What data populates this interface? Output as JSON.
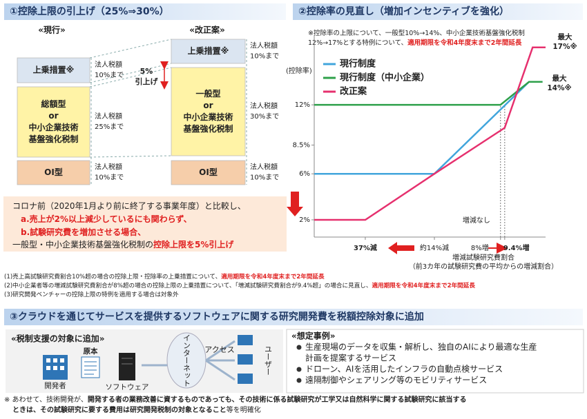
{
  "section1": {
    "title": "①控除上限の引上げ（25%⇒30%）",
    "current_label": "«現行»",
    "proposal_label": "«改正案»",
    "current": [
      {
        "label": [
          "上乗措置※"
        ],
        "limit": [
          "法人税額",
          "10%まで"
        ]
      },
      {
        "label": [
          "総額型",
          "or",
          "中小企業技術",
          "基盤強化税制"
        ],
        "limit": [
          "法人税額",
          "25%まで"
        ]
      },
      {
        "label": [
          "OI型"
        ],
        "limit": [
          "法人税額",
          "10%まで"
        ]
      }
    ],
    "proposal": [
      {
        "label": [
          "上乗措置※"
        ],
        "limit": [
          "法人税額",
          "10%まで"
        ]
      },
      {
        "label": [
          {
            "text": "一般型",
            "color": "#e02020"
          },
          "or",
          "中小企業技術",
          "基盤強化税制"
        ],
        "limit": [
          "法人税額",
          "30%まで"
        ]
      },
      {
        "label": [
          "OI型"
        ],
        "limit": [
          "法人税額",
          "10%まで"
        ]
      }
    ],
    "increase": [
      "5%",
      "引上げ"
    ],
    "comparison": [
      [
        "コロナ前（2020年1月より前に終了する事業年度）と比較し、"
      ],
      [
        {
          "text": "a.売上が2%以上減少しているにも関わらず、",
          "color": "#e02020",
          "bold": true
        }
      ],
      [
        {
          "text": "b.試験研究費を増加させる場合、",
          "color": "#e02020",
          "bold": true
        }
      ],
      [
        "一般型・中小企業技術基盤強化税制の",
        {
          "text": "控除上限を5%引上げ",
          "color": "#e02020",
          "bold": true
        }
      ]
    ]
  },
  "chart_data": {
    "type": "line",
    "title": "②控除率の見直し（増加インセンティブを強化）",
    "notes": [
      [
        "※控除率の上限について、一般型10%→14%、中小企業技術基盤強化税制"
      ],
      [
        "12%→17%とする特例について、",
        {
          "text": "適用期限を令和4年度末まで2年間延長",
          "color": "#e02020",
          "bold": true
        }
      ]
    ],
    "ylabel": "(控除率)",
    "xlabel": "増減試験研究費割合",
    "xlabel_note": "（前3カ年の試験研究費の平均からの増減割合）",
    "xlim": [
      -54,
      23
    ],
    "ylim": [
      0.5,
      18
    ],
    "yticks": [
      {
        "value": 2,
        "label": "2%"
      },
      {
        "value": 6,
        "label": "6%"
      },
      {
        "value": 8.5,
        "label": "8.5%"
      },
      {
        "value": 12,
        "label": "12%"
      }
    ],
    "xticks": [
      {
        "value": -37,
        "label": "37%減"
      },
      {
        "value": -14,
        "label": "約14%減"
      },
      {
        "value": 8,
        "label": "8%増"
      },
      {
        "value": 9.4,
        "label": "9.4%増"
      }
    ],
    "series": [
      {
        "name": "現行制度",
        "color": "#41a5dc",
        "x": [
          -54,
          -14,
          17.5,
          22
        ],
        "values": [
          6,
          6,
          14,
          14
        ]
      },
      {
        "name": "現行制度（中小企業）",
        "color": "#2ea04a",
        "x": [
          -54,
          8,
          17.5,
          22
        ],
        "values": [
          12,
          12,
          14,
          14
        ]
      },
      {
        "name": "改正案",
        "color": "#e6306e",
        "x": [
          -54,
          -37,
          -14,
          9.4,
          18.7,
          23
        ],
        "values": [
          2,
          2,
          6,
          10,
          17,
          17
        ]
      }
    ],
    "annotations": {
      "no_change": "増減なし",
      "max17": [
        "最大",
        "17%※"
      ],
      "max14": [
        "最大",
        "14%※"
      ]
    }
  },
  "footnotes": [
    [
      "(1)売上高試験研究費割合10%超の場合の控除上限・控除率の上乗措置について、",
      {
        "text": "適用期限を令和4年度末まで2年間延長",
        "color": "#e02020",
        "bold": true
      }
    ],
    [
      "(2)中小企業者等の増減試験研究費割合が8%超の場合の控除上限の上乗措置について、「増減試験研究費割合が9.4%超」の場合に見直し、",
      {
        "text": "適用期限を令和4年度末まで2年間延長",
        "color": "#e02020",
        "bold": true
      }
    ],
    [
      "(3)研究開発ベンチャーの控除上限の特例を適用する場合は対象外"
    ]
  ],
  "section3": {
    "title": "③クラウドを通じてサービスを提供するソフトウェアに関する研究開発費を税額控除対象に追加",
    "target_label": "«税制支援の対象に追加»",
    "original": "原本",
    "developer": "開発者",
    "software": "ソフトウェア",
    "internet": "インターネット",
    "access": "アクセス",
    "user": "ユーザー",
    "cases_title": "«想定事例»",
    "cases": [
      [
        "生産現場のデータを収集・解析し、独自のAIにより最適な生産",
        "計画を提案するサービス"
      ],
      [
        "ドローン、AIを活用したインフラの自動点検サービス"
      ],
      [
        "遠隔制御やシェアリング等のモビリティサービス"
      ]
    ],
    "note": [
      [
        "※ あわせて、技術開発が、",
        {
          "text": "開発する者の業務改善に資するものであっても、その技術に係る試験研究が工学又は自然科学に関する試験研究に該当する",
          "bold": true
        }
      ],
      [
        {
          "text": "ときは、その試験研究に要する費用は研究開発税制の対象となること",
          "bold": true
        },
        "等を明確化"
      ]
    ]
  }
}
